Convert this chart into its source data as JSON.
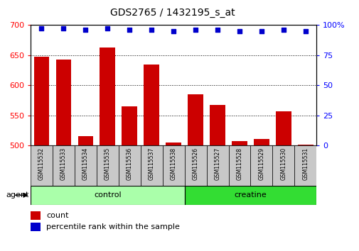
{
  "title": "GDS2765 / 1432195_s_at",
  "samples": [
    "GSM115532",
    "GSM115533",
    "GSM115534",
    "GSM115535",
    "GSM115536",
    "GSM115537",
    "GSM115538",
    "GSM115526",
    "GSM115527",
    "GSM115528",
    "GSM115529",
    "GSM115530",
    "GSM115531"
  ],
  "counts": [
    648,
    643,
    516,
    663,
    565,
    635,
    505,
    585,
    568,
    507,
    511,
    557,
    502
  ],
  "percentile": [
    97,
    97,
    96,
    97,
    96,
    96,
    95,
    96,
    96,
    95,
    95,
    96,
    95
  ],
  "groups": [
    {
      "name": "control",
      "indices": [
        0,
        1,
        2,
        3,
        4,
        5,
        6
      ],
      "color": "#AAFFAA"
    },
    {
      "name": "creatine",
      "indices": [
        7,
        8,
        9,
        10,
        11,
        12
      ],
      "color": "#33DD33"
    }
  ],
  "bar_color": "#CC0000",
  "dot_color": "#0000CC",
  "ylim_left": [
    500,
    700
  ],
  "ylim_right": [
    0,
    100
  ],
  "yticks_left": [
    500,
    550,
    600,
    650,
    700
  ],
  "yticks_right": [
    0,
    25,
    50,
    75,
    100
  ],
  "ytick_right_labels": [
    "0",
    "25",
    "50",
    "75",
    "100%"
  ],
  "bar_width": 0.7,
  "bar_color_hex": "#CC0000",
  "dot_color_hex": "#0000CC",
  "agent_label": "agent",
  "legend_count_label": "count",
  "legend_pct_label": "percentile rank within the sample",
  "title_fontsize": 10,
  "axis_fontsize": 8,
  "label_fontsize": 7
}
